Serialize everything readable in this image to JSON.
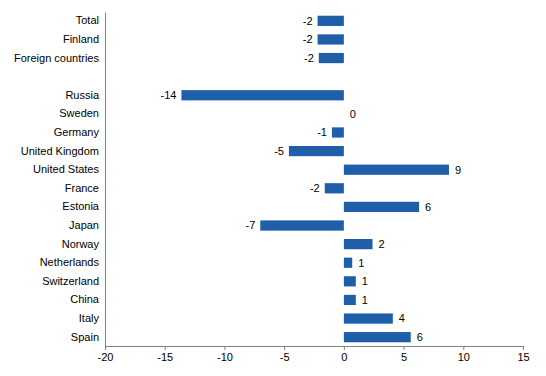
{
  "chart_data": {
    "type": "bar",
    "orientation": "horizontal",
    "categories": [
      "Total",
      "Finland",
      "Foreign countries",
      null,
      "Russia",
      "Sweden",
      "Germany",
      "United Kingdom",
      "United States",
      "France",
      "Estonia",
      "Japan",
      "Norway",
      "Netherlands",
      "Switzerland",
      "China",
      "Italy",
      "Spain"
    ],
    "values": [
      -2.2,
      -2.2,
      -2.1,
      null,
      -13.6,
      0,
      -1.0,
      -4.6,
      8.8,
      -1.6,
      6.3,
      -7.0,
      2.4,
      0.7,
      1.0,
      1.0,
      4.1,
      5.6
    ],
    "value_labels": [
      "-2",
      "-2",
      "-2",
      null,
      "-14",
      "0",
      "-1",
      "-5",
      "9",
      "-2",
      "6",
      "-7",
      "2",
      "1",
      "1",
      "1",
      "4",
      "6"
    ],
    "color": "#1f5fa9",
    "xlim": [
      -20,
      15
    ],
    "xticks": [
      -20,
      -15,
      -10,
      -5,
      0,
      5,
      10,
      15
    ],
    "grid": false,
    "data_labels": true
  }
}
